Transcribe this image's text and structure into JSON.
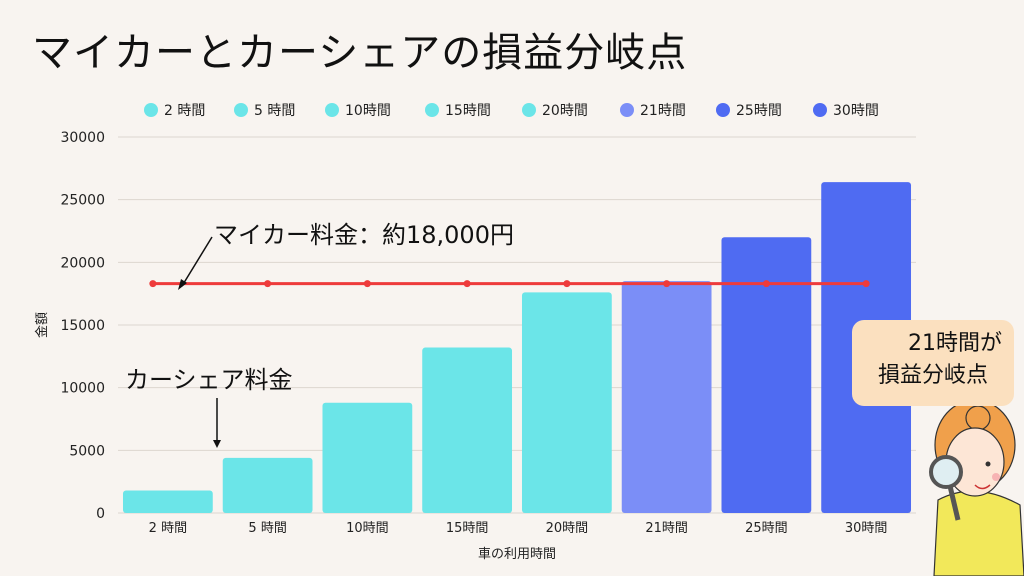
{
  "title": "マイカーとカーシェアの損益分岐点",
  "callout": {
    "line1": "21時間が",
    "line2": "損益分岐点"
  },
  "annotations": {
    "mycar": "マイカー料金：約18,000円",
    "carshare": "カーシェア料金"
  },
  "chart_data": {
    "type": "bar",
    "categories": [
      "2時間",
      "5時間",
      "10時間",
      "15時間",
      "20時間",
      "21時間",
      "25時間",
      "30時間"
    ],
    "tick_labels": [
      "2 時間",
      "5 時間",
      "10時間",
      "15時間",
      "20時間",
      "21時間",
      "25時間",
      "30時間"
    ],
    "values": [
      1800,
      4400,
      8800,
      13200,
      17600,
      18500,
      22000,
      26400
    ],
    "bar_colors": [
      "#6be5e8",
      "#6be5e8",
      "#6be5e8",
      "#6be5e8",
      "#6be5e8",
      "#7b8ef7",
      "#4f6bf2",
      "#4f6bf2"
    ],
    "legend": [
      "2 時間",
      "5 時間",
      "10時間",
      "15時間",
      "20時間",
      "21時間",
      "25時間",
      "30時間"
    ],
    "legend_placement": "top",
    "mycar_line": {
      "value": 18300,
      "color": "#ee3b3b"
    },
    "xlabel": "車の利用時間",
    "ylabel": "金額",
    "ylim": [
      0,
      30000
    ],
    "yticks": [
      0,
      5000,
      10000,
      15000,
      20000,
      25000,
      30000
    ],
    "grid": true
  }
}
